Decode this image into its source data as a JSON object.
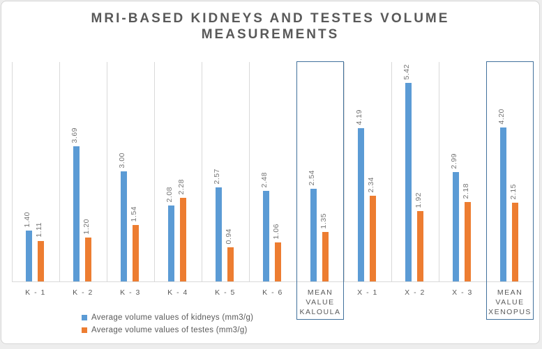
{
  "chart_data": {
    "type": "bar",
    "title": "MRI-BASED KIDNEYS AND TESTES VOLUME MEASUREMENTS",
    "categories": [
      "K - 1",
      "K - 2",
      "K - 3",
      "K - 4",
      "K - 5",
      "K - 6",
      "MEAN VALUE KALOULA",
      "X - 1",
      "X - 2",
      "X - 3",
      "MEAN VALUE XENOPUS"
    ],
    "category_label_lines": [
      [
        "K - 1"
      ],
      [
        "K - 2"
      ],
      [
        "K - 3"
      ],
      [
        "K - 4"
      ],
      [
        "K - 5"
      ],
      [
        "K - 6"
      ],
      [
        "MEAN",
        "VALUE",
        "KALOULA"
      ],
      [
        "X - 1"
      ],
      [
        "X - 2"
      ],
      [
        "X - 3"
      ],
      [
        "MEAN",
        "VALUE",
        "XENOPUS"
      ]
    ],
    "series": [
      {
        "name": "Average volume values of kidneys (mm3/g)",
        "color": "#5B9BD5",
        "values": [
          1.4,
          3.69,
          3.0,
          2.08,
          2.57,
          2.48,
          2.54,
          4.19,
          5.42,
          2.99,
          4.2
        ],
        "data_labels": [
          "1.40",
          "3.69",
          "3.00",
          "2.08",
          "2.57",
          "2.48",
          "2.54",
          "4.19",
          "5.42",
          "2.99",
          "4.20"
        ]
      },
      {
        "name": "Average volume values of testes (mm3/g)",
        "color": "#ED7D31",
        "values": [
          1.11,
          1.2,
          1.54,
          2.28,
          0.94,
          1.06,
          1.35,
          2.34,
          1.92,
          2.18,
          2.15
        ],
        "data_labels": [
          "1.11",
          "1.20",
          "1.54",
          "2.28",
          "0.94",
          "1.06",
          "1.35",
          "2.34",
          "1.92",
          "2.18",
          "2.15"
        ]
      }
    ],
    "xlabel": "",
    "ylabel": "",
    "ylim": [
      0,
      6
    ],
    "grid": "vertical-category-separators-only",
    "legend_position": "bottom-left",
    "highlighted_category_indices": [
      6,
      10
    ],
    "colors": {
      "kidneys_bar": "#5B9BD5",
      "testes_bar": "#ED7D31",
      "highlight_box": "#41719C",
      "gridline": "#D9D9D9",
      "title_text": "#595959",
      "data_label_text": "#757575"
    }
  }
}
